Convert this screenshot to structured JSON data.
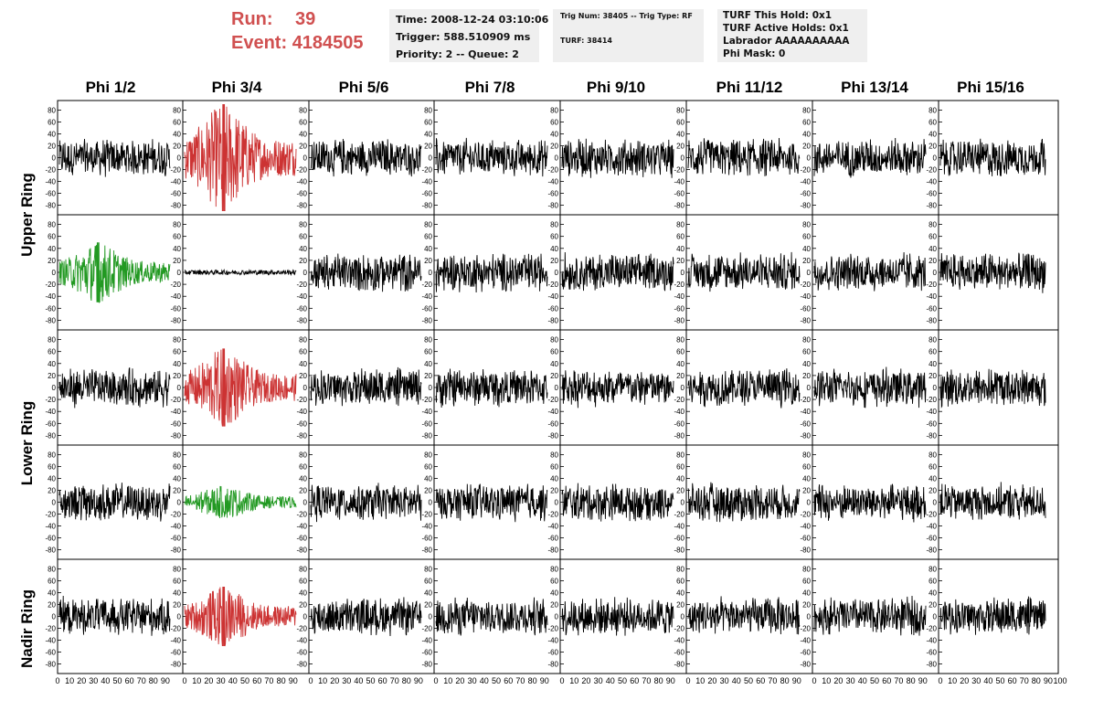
{
  "run": {
    "run_label": "Run:",
    "run_value": "39",
    "event_label": "Event:",
    "event_value": "4184505"
  },
  "info_box_1": {
    "line1": "Time: 2008-12-24 03:10:06",
    "line2": "Trigger: 588.510909 ms",
    "line3": "Priority: 2 -- Queue: 2"
  },
  "info_box_2": {
    "line1": "Trig Num: 38405 -- Trig Type: RF",
    "line2": "TURF: 38414"
  },
  "info_box_3": {
    "line1": "TURF This Hold: 0x1",
    "line2": "TURF Active Holds: 0x1",
    "line3": "Labrador AAAAAAAAAA",
    "line4": "Phi Mask: 0"
  },
  "columns": [
    "Phi 1/2",
    "Phi 3/4",
    "Phi 5/6",
    "Phi 7/8",
    "Phi 9/10",
    "Phi 11/12",
    "Phi 13/14",
    "Phi 15/16"
  ],
  "ring_labels": [
    "Upper Ring",
    "Lower Ring",
    "Nadir Ring"
  ],
  "colors": {
    "run_text": "#d05050",
    "trace_default": "#000000",
    "trace_red": "#cc3333",
    "trace_green": "#229922",
    "info_bg": "#efefef"
  },
  "chart_data": {
    "type": "line",
    "x_ticks": [
      "0",
      "10",
      "20",
      "30",
      "40",
      "50",
      "60",
      "70",
      "80",
      "90",
      "100"
    ],
    "y_ticks": [
      "80",
      "60",
      "40",
      "20",
      "0",
      "-20",
      "-40",
      "-60",
      "-80"
    ],
    "xlim": [
      0,
      100
    ],
    "ylim": [
      -90,
      90
    ],
    "grid": false,
    "panel_rows": 5,
    "panel_cols": 8,
    "highlighted_panels": [
      {
        "row": 0,
        "col": 1,
        "color": "red",
        "peak_amplitude": 90,
        "peak_x": 35
      },
      {
        "row": 1,
        "col": 0,
        "color": "green",
        "peak_amplitude": 50,
        "peak_x": 35
      },
      {
        "row": 1,
        "col": 1,
        "color": "black",
        "peak_amplitude": 4,
        "peak_x": 50
      },
      {
        "row": 2,
        "col": 1,
        "color": "red",
        "peak_amplitude": 65,
        "peak_x": 35
      },
      {
        "row": 3,
        "col": 1,
        "color": "green",
        "peak_amplitude": 28,
        "peak_x": 35
      },
      {
        "row": 4,
        "col": 1,
        "color": "red",
        "peak_amplitude": 50,
        "peak_x": 35
      }
    ],
    "baseline_amplitude": 35
  }
}
